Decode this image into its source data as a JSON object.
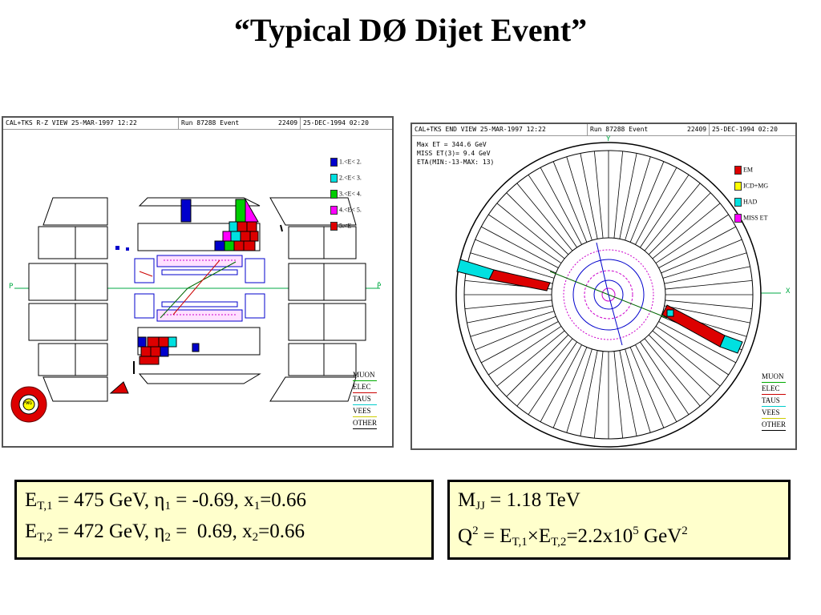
{
  "title": "“Typical DØ Dijet Event”",
  "left_panel": {
    "header": {
      "view": "CAL+TKS R-Z VIEW 25-MAR-1997 12:22",
      "run": "Run   87288 Event",
      "event": "22409",
      "date": "25-DEC-1994 02:20"
    },
    "energy_legend": [
      {
        "label": "1.<E< 2.",
        "color": "#0000cc"
      },
      {
        "label": "2.<E< 3.",
        "color": "#00e0e0"
      },
      {
        "label": "3.<E< 4.",
        "color": "#00cc00"
      },
      {
        "label": "4.<E< 5.",
        "color": "#ff00ff"
      },
      {
        "label": "5.<E",
        "color": "#dd0000"
      }
    ],
    "axis_left": "P",
    "axis_right": "P̄",
    "logo_text": "PWG",
    "track_legend": [
      "MUON",
      "ELEC",
      "TAUS",
      "VEES",
      "OTHER"
    ]
  },
  "right_panel": {
    "header": {
      "view": "CAL+TKS END VIEW 25-MAR-1997 12:22",
      "run": "Run   87288 Event",
      "event": "22409",
      "date": "25-DEC-1994 02:20"
    },
    "info_lines": [
      "Max ET =   344.6 GeV",
      "MISS ET(3)=    9.4 GeV",
      "ETA(MIN:-13-MAX: 13)"
    ],
    "layer_legend": [
      {
        "label": "EM",
        "color": "#dd0000"
      },
      {
        "label": "ICD+MG",
        "color": "#ffff00"
      },
      {
        "label": "HAD",
        "color": "#00e0e0"
      },
      {
        "label": "MISS ET",
        "color": "#ff00ff"
      }
    ],
    "axis_y": "Y",
    "axis_x": "X",
    "track_legend": [
      "MUON",
      "ELEC",
      "TAUS",
      "VEES",
      "OTHER"
    ]
  },
  "colors": {
    "track_muon": "#00aa00",
    "track_elec": "#cc0000",
    "track_taus": "#00cccc",
    "track_vees": "#cccc00",
    "track_other": "#000000",
    "box_bg": "#ffffcc"
  },
  "box_left": {
    "line1": {
      "a": "E",
      "sub1": "T,1",
      "b": " = 475 GeV, η",
      "sub2": "1",
      "c": " = -0.69, x",
      "sub3": "1",
      "d": "=0.66"
    },
    "line2": {
      "a": "E",
      "sub1": "T,2",
      "b": " = 472 GeV, η",
      "sub2": "2",
      "c": " =  0.69, x",
      "sub3": "2",
      "d": "=0.66"
    }
  },
  "box_right": {
    "line1": {
      "a": "M",
      "sub1": "JJ",
      "b": " = 1.18 TeV"
    },
    "line2": {
      "a": "Q",
      "sup1": "2",
      "b": " = E",
      "sub1": "T,1",
      "c": "×E",
      "sub2": "T,2",
      "d": "=2.2x10",
      "sup2": "5",
      "e": " GeV",
      "sup3": "2"
    }
  }
}
